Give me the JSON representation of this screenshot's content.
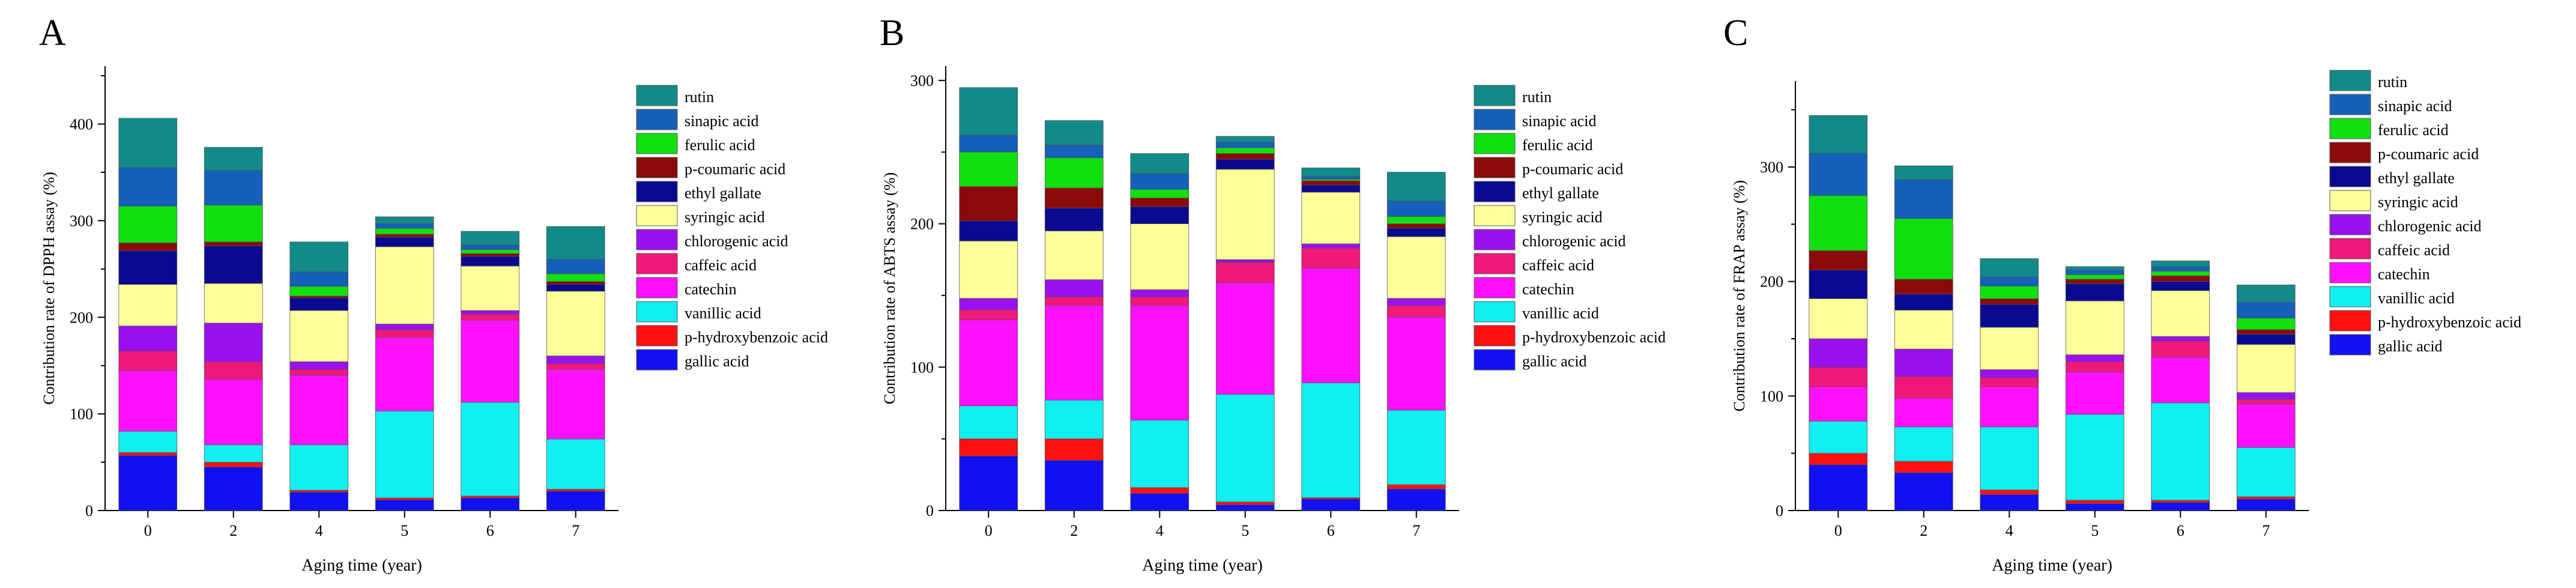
{
  "chart_data": [
    {
      "type": "bar",
      "stacked": true,
      "panel_label": "A",
      "xlabel": "Aging time (year)",
      "ylabel": "Contribution rate of DPPH assay (%)",
      "categories": [
        "0",
        "2",
        "4",
        "5",
        "6",
        "7"
      ],
      "ylim": [
        0,
        460
      ],
      "yticks": [
        0,
        100,
        200,
        300,
        400
      ],
      "legend_position": "right",
      "series": [
        {
          "name": "gallic acid",
          "color": "#1010f0",
          "values": [
            57,
            45,
            19,
            11,
            13,
            20
          ]
        },
        {
          "name": "p-hydroxybenzoic acid",
          "color": "#ff1010",
          "values": [
            3,
            5,
            2,
            2,
            2,
            2
          ]
        },
        {
          "name": "vanillic acid",
          "color": "#10f0f0",
          "values": [
            22,
            18,
            47,
            90,
            97,
            52
          ]
        },
        {
          "name": "catechin",
          "color": "#ff10ff",
          "values": [
            63,
            68,
            72,
            76,
            85,
            72
          ]
        },
        {
          "name": "caffeic acid",
          "color": "#f01878",
          "values": [
            20,
            18,
            6,
            8,
            6,
            6
          ]
        },
        {
          "name": "chlorogenic acid",
          "color": "#9a10ee",
          "values": [
            26,
            40,
            8,
            6,
            4,
            8
          ]
        },
        {
          "name": "syringic acid",
          "color": "#ffff99",
          "values": [
            43,
            41,
            53,
            80,
            46,
            67
          ]
        },
        {
          "name": "ethyl gallate",
          "color": "#0a0a90",
          "values": [
            35,
            39,
            13,
            10,
            10,
            7
          ]
        },
        {
          "name": "p-coumaric acid",
          "color": "#8b0a0a",
          "values": [
            8,
            4,
            2,
            3,
            3,
            3
          ]
        },
        {
          "name": "ferulic acid",
          "color": "#10e010",
          "values": [
            38,
            38,
            10,
            6,
            4,
            8
          ]
        },
        {
          "name": "sinapic acid",
          "color": "#1560b8",
          "values": [
            40,
            36,
            15,
            5,
            5,
            15
          ]
        },
        {
          "name": "rutin",
          "color": "#128a8a",
          "values": [
            51,
            24,
            31,
            7,
            14,
            34
          ]
        }
      ]
    },
    {
      "type": "bar",
      "stacked": true,
      "panel_label": "B",
      "xlabel": "Aging time (year)",
      "ylabel": "Contribution rate of ABTS assay (%)",
      "categories": [
        "0",
        "2",
        "4",
        "5",
        "6",
        "7"
      ],
      "ylim": [
        0,
        310
      ],
      "yticks": [
        0,
        100,
        200,
        300
      ],
      "legend_position": "right",
      "series": [
        {
          "name": "gallic acid",
          "color": "#1010f0",
          "values": [
            38,
            35,
            12,
            4,
            8,
            15
          ]
        },
        {
          "name": "p-hydroxybenzoic acid",
          "color": "#ff1010",
          "values": [
            12,
            15,
            4,
            2,
            1,
            3
          ]
        },
        {
          "name": "vanillic acid",
          "color": "#10f0f0",
          "values": [
            23,
            27,
            47,
            75,
            80,
            52
          ]
        },
        {
          "name": "catechin",
          "color": "#ff10ff",
          "values": [
            60,
            66,
            80,
            78,
            80,
            65
          ]
        },
        {
          "name": "caffeic acid",
          "color": "#f01878",
          "values": [
            7,
            6,
            6,
            14,
            14,
            8
          ]
        },
        {
          "name": "chlorogenic acid",
          "color": "#9a10ee",
          "values": [
            8,
            12,
            5,
            2,
            3,
            5
          ]
        },
        {
          "name": "syringic acid",
          "color": "#ffff99",
          "values": [
            40,
            34,
            46,
            63,
            36,
            43
          ]
        },
        {
          "name": "ethyl gallate",
          "color": "#0a0a90",
          "values": [
            14,
            16,
            12,
            7,
            5,
            6
          ]
        },
        {
          "name": "p-coumaric acid",
          "color": "#8b0a0a",
          "values": [
            24,
            14,
            6,
            4,
            3,
            3
          ]
        },
        {
          "name": "ferulic acid",
          "color": "#10e010",
          "values": [
            24,
            21,
            6,
            4,
            1,
            5
          ]
        },
        {
          "name": "sinapic acid",
          "color": "#1560b8",
          "values": [
            12,
            9,
            11,
            4,
            2,
            11
          ]
        },
        {
          "name": "rutin",
          "color": "#128a8a",
          "values": [
            33,
            17,
            14,
            4,
            6,
            20
          ]
        }
      ]
    },
    {
      "type": "bar",
      "stacked": true,
      "panel_label": "C",
      "xlabel": "Aging time (year)",
      "ylabel": "Contribution rate of FRAP assay (%)",
      "categories": [
        "0",
        "2",
        "4",
        "5",
        "6",
        "7"
      ],
      "ylim": [
        0,
        375
      ],
      "yticks": [
        0,
        100,
        200,
        300
      ],
      "legend_position": "right",
      "series": [
        {
          "name": "gallic acid",
          "color": "#1010f0",
          "values": [
            40,
            33,
            14,
            6,
            7,
            10
          ]
        },
        {
          "name": "p-hydroxybenzoic acid",
          "color": "#ff1010",
          "values": [
            10,
            10,
            4,
            3,
            2,
            2
          ]
        },
        {
          "name": "vanillic acid",
          "color": "#10f0f0",
          "values": [
            28,
            30,
            55,
            75,
            85,
            43
          ]
        },
        {
          "name": "catechin",
          "color": "#ff10ff",
          "values": [
            30,
            25,
            35,
            37,
            40,
            38
          ]
        },
        {
          "name": "caffeic acid",
          "color": "#f01878",
          "values": [
            17,
            19,
            8,
            9,
            14,
            4
          ]
        },
        {
          "name": "chlorogenic acid",
          "color": "#9a10ee",
          "values": [
            25,
            24,
            7,
            6,
            4,
            6
          ]
        },
        {
          "name": "syringic acid",
          "color": "#ffff99",
          "values": [
            35,
            34,
            37,
            47,
            40,
            42
          ]
        },
        {
          "name": "ethyl gallate",
          "color": "#0a0a90",
          "values": [
            25,
            14,
            20,
            15,
            8,
            9
          ]
        },
        {
          "name": "p-coumaric acid",
          "color": "#8b0a0a",
          "values": [
            17,
            13,
            5,
            4,
            5,
            4
          ]
        },
        {
          "name": "ferulic acid",
          "color": "#10e010",
          "values": [
            48,
            53,
            11,
            4,
            4,
            10
          ]
        },
        {
          "name": "sinapic acid",
          "color": "#1560b8",
          "values": [
            37,
            34,
            8,
            4,
            4,
            14
          ]
        },
        {
          "name": "rutin",
          "color": "#128a8a",
          "values": [
            33,
            12,
            16,
            3,
            5,
            15
          ]
        }
      ]
    }
  ]
}
